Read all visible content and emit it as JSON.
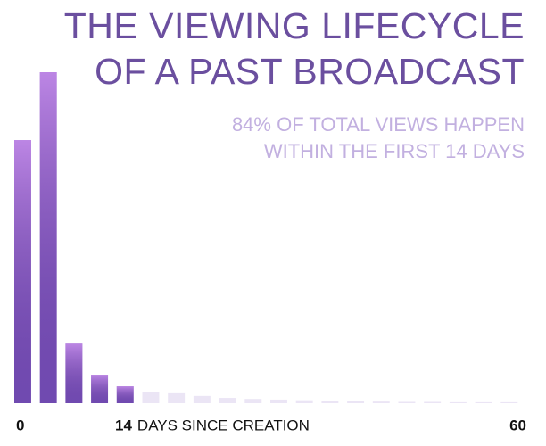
{
  "chart_data": {
    "type": "histogram",
    "title": [
      "THE VIEWING LIFECYCLE",
      "OF A PAST BROADCAST"
    ],
    "subtitle": [
      "84% OF TOTAL VIEWS HAPPEN",
      "WITHIN THE FIRST 14 DAYS"
    ],
    "x_label": "DAYS SINCE CREATION",
    "bins": [
      0,
      3,
      6,
      9,
      12,
      15,
      18,
      21,
      24,
      27,
      30,
      33,
      36,
      39,
      42,
      45,
      48,
      51,
      54,
      57,
      60
    ],
    "values": [
      79.5,
      100,
      18,
      8.6,
      5.1,
      3.5,
      3,
      2.2,
      1.6,
      1.3,
      1.1,
      0.9,
      0.8,
      0.6,
      0.5,
      0.4,
      0.4,
      0.3,
      0.3,
      0.3
    ],
    "colors": [
      "#7a52bc",
      "#7a52bc",
      "#7a52bc",
      "#7a52bc",
      "#7a52bc",
      "#ebe5f5",
      "#ebe5f5",
      "#ebe5f5",
      "#ebe5f5",
      "#ebe5f5",
      "#ebe5f5",
      "#ebe5f5",
      "#ebe5f5",
      "#ebe5f5",
      "#ebe5f5",
      "#ebe5f5",
      "#ebe5f5",
      "#ebe5f5",
      "#ebe5f5",
      "#ebe5f5"
    ],
    "xlim": [
      0,
      60
    ],
    "xticks": [
      0,
      14,
      60
    ],
    "ylim": [
      0,
      100
    ]
  }
}
